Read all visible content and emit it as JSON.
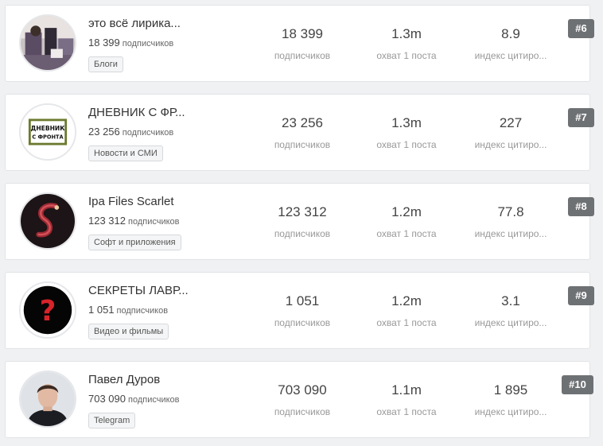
{
  "cards": [
    {
      "name": "это всё лирика...",
      "subscribers": "18 399",
      "subscribers_word": "подписчиков",
      "tag": "Блоги",
      "stats": [
        {
          "value": "18 399",
          "label": "подписчиков"
        },
        {
          "value": "1.3m",
          "label": "охват 1 поста"
        },
        {
          "value": "8.9",
          "label": "индекс цитиро..."
        }
      ],
      "rank": "#6"
    },
    {
      "name": "ДНЕВНИК С ФР...",
      "subscribers": "23 256",
      "subscribers_word": "подписчиков",
      "tag": "Новости и СМИ",
      "avatar_text": [
        "ДНЕВНИК",
        "С ФРОНТА"
      ],
      "stats": [
        {
          "value": "23 256",
          "label": "подписчиков"
        },
        {
          "value": "1.3m",
          "label": "охват 1 поста"
        },
        {
          "value": "227",
          "label": "индекс цитиро..."
        }
      ],
      "rank": "#7"
    },
    {
      "name": "Ipa Files Scarlet",
      "subscribers": "123 312",
      "subscribers_word": "подписчиков",
      "tag": "Софт и приложения",
      "stats": [
        {
          "value": "123 312",
          "label": "подписчиков"
        },
        {
          "value": "1.2m",
          "label": "охват 1 поста"
        },
        {
          "value": "77.8",
          "label": "индекс цитиро..."
        }
      ],
      "rank": "#8"
    },
    {
      "name": "СЕКРЕТЫ ЛАВР...",
      "subscribers": "1 051",
      "subscribers_word": "подписчиков",
      "tag": "Видео и фильмы",
      "avatar_text": [
        "?"
      ],
      "stats": [
        {
          "value": "1 051",
          "label": "подписчиков"
        },
        {
          "value": "1.2m",
          "label": "охват 1 поста"
        },
        {
          "value": "3.1",
          "label": "индекс цитиро..."
        }
      ],
      "rank": "#9"
    },
    {
      "name": "Павел Дуров",
      "subscribers": "703 090",
      "subscribers_word": "подписчиков",
      "tag": "Telegram",
      "stats": [
        {
          "value": "703 090",
          "label": "подписчиков"
        },
        {
          "value": "1.1m",
          "label": "охват 1 поста"
        },
        {
          "value": "1 895",
          "label": "индекс цитиро..."
        }
      ],
      "rank": "#10"
    }
  ]
}
